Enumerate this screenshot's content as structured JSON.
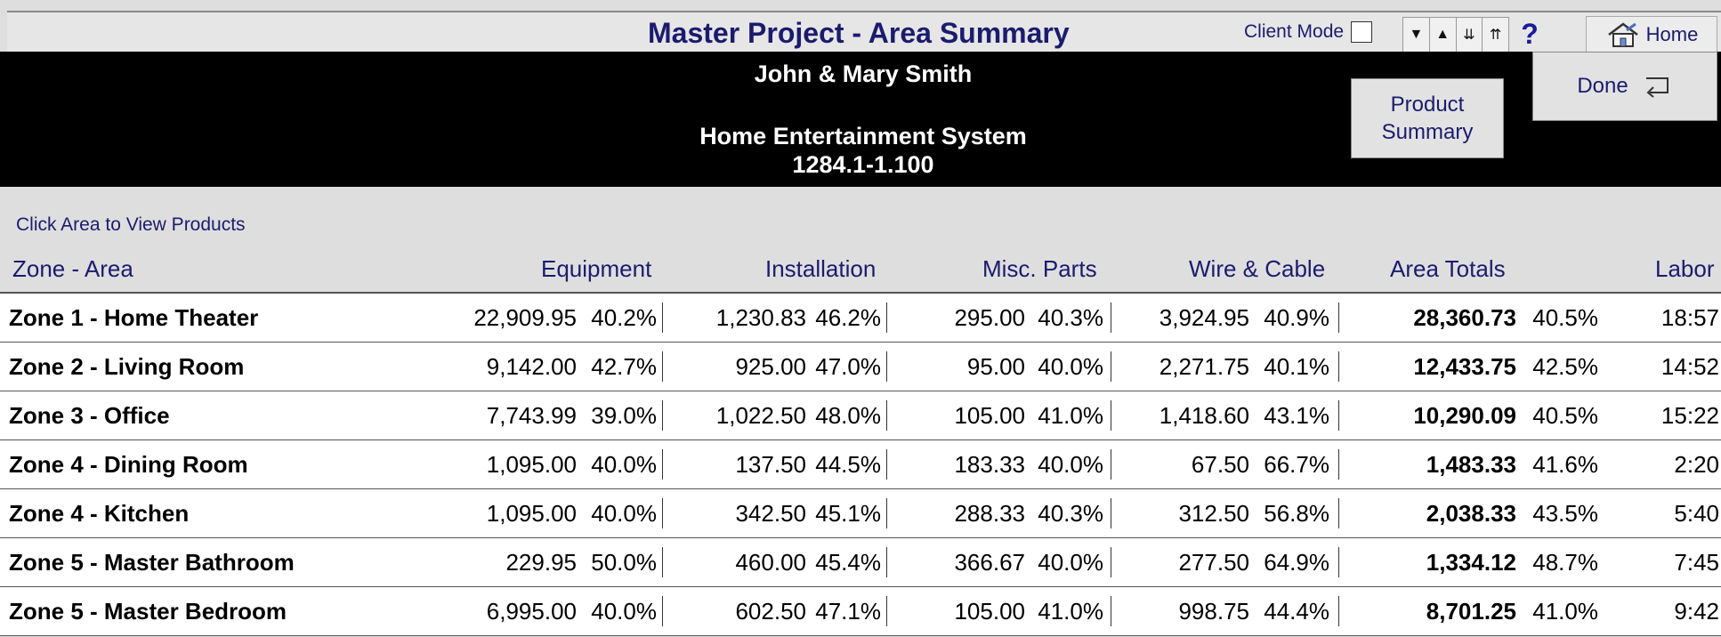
{
  "header": {
    "title": "Master Project - Area Summary",
    "client_mode_label": "Client Mode",
    "help_label": "?",
    "home_label": "Home",
    "customer_name": "John & Mary Smith",
    "project_name": "Home Entertainment System",
    "project_number": "1284.1-1.100",
    "product_summary_label": "Product\nSummary",
    "done_label": "Done"
  },
  "nav": {
    "down": "▼",
    "up": "▲",
    "last": "⇊",
    "first": "⇈"
  },
  "hint": "Click Area to View Products",
  "columns": {
    "area": "Zone - Area",
    "equipment": "Equipment",
    "installation": "Installation",
    "misc_parts": "Misc. Parts",
    "wire_cable": "Wire & Cable",
    "area_totals": "Area Totals",
    "labor": "Labor"
  },
  "rows": [
    {
      "area": "Zone 1 - Home Theater",
      "equip": "22,909.95",
      "equip_pct": "40.2%",
      "inst": "1,230.83",
      "inst_pct": "46.2%",
      "misc": "295.00",
      "misc_pct": "40.3%",
      "wire": "3,924.95",
      "wire_pct": "40.9%",
      "total": "28,360.73",
      "total_pct": "40.5%",
      "labor": "18:57"
    },
    {
      "area": "Zone 2 - Living Room",
      "equip": "9,142.00",
      "equip_pct": "42.7%",
      "inst": "925.00",
      "inst_pct": "47.0%",
      "misc": "95.00",
      "misc_pct": "40.0%",
      "wire": "2,271.75",
      "wire_pct": "40.1%",
      "total": "12,433.75",
      "total_pct": "42.5%",
      "labor": "14:52"
    },
    {
      "area": "Zone 3 - Office",
      "equip": "7,743.99",
      "equip_pct": "39.0%",
      "inst": "1,022.50",
      "inst_pct": "48.0%",
      "misc": "105.00",
      "misc_pct": "41.0%",
      "wire": "1,418.60",
      "wire_pct": "43.1%",
      "total": "10,290.09",
      "total_pct": "40.5%",
      "labor": "15:22"
    },
    {
      "area": "Zone 4 - Dining Room",
      "equip": "1,095.00",
      "equip_pct": "40.0%",
      "inst": "137.50",
      "inst_pct": "44.5%",
      "misc": "183.33",
      "misc_pct": "40.0%",
      "wire": "67.50",
      "wire_pct": "66.7%",
      "total": "1,483.33",
      "total_pct": "41.6%",
      "labor": "2:20"
    },
    {
      "area": "Zone 4 - Kitchen",
      "equip": "1,095.00",
      "equip_pct": "40.0%",
      "inst": "342.50",
      "inst_pct": "45.1%",
      "misc": "288.33",
      "misc_pct": "40.3%",
      "wire": "312.50",
      "wire_pct": "56.8%",
      "total": "2,038.33",
      "total_pct": "43.5%",
      "labor": "5:40"
    },
    {
      "area": "Zone 5 - Master Bathroom",
      "equip": "229.95",
      "equip_pct": "50.0%",
      "inst": "460.00",
      "inst_pct": "45.4%",
      "misc": "366.67",
      "misc_pct": "40.0%",
      "wire": "277.50",
      "wire_pct": "64.9%",
      "total": "1,334.12",
      "total_pct": "48.7%",
      "labor": "7:45"
    },
    {
      "area": "Zone 5 - Master Bedroom",
      "equip": "6,995.00",
      "equip_pct": "40.0%",
      "inst": "602.50",
      "inst_pct": "47.1%",
      "misc": "105.00",
      "misc_pct": "41.0%",
      "wire": "998.75",
      "wire_pct": "44.4%",
      "total": "8,701.25",
      "total_pct": "41.0%",
      "labor": "9:42"
    }
  ]
}
